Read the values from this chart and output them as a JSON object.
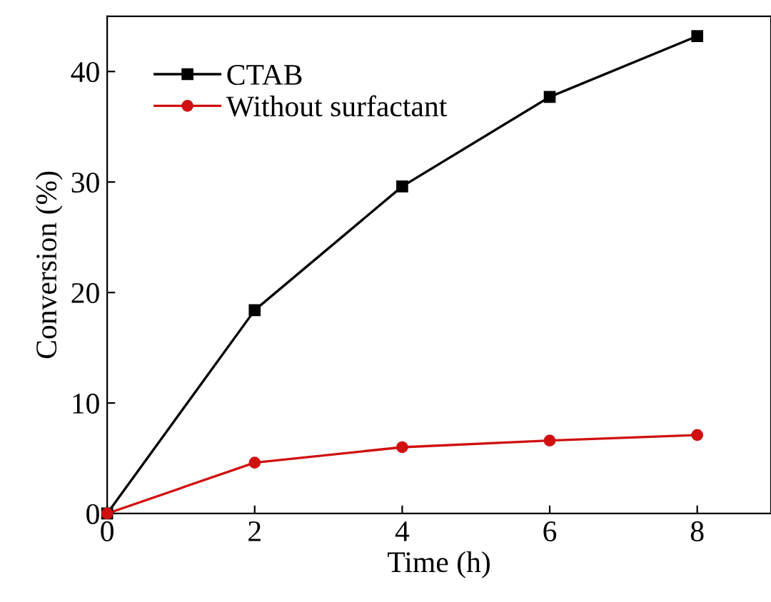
{
  "chart_data": {
    "type": "line",
    "xlabel": "Time (h)",
    "ylabel": "Conversion (%)",
    "x": [
      0,
      2,
      4,
      6,
      8
    ],
    "series": [
      {
        "name": "CTAB",
        "color": "#000000",
        "marker": "square",
        "values": [
          0,
          18.4,
          29.6,
          37.7,
          43.2
        ]
      },
      {
        "name": "Without surfactant",
        "color": "#d01010",
        "marker": "circle",
        "values": [
          0,
          4.6,
          6.0,
          6.6,
          7.1
        ]
      }
    ],
    "xlim": [
      0,
      9
    ],
    "ylim": [
      0,
      45
    ],
    "xticks": [
      0,
      2,
      4,
      6,
      8
    ],
    "yticks": [
      0,
      10,
      20,
      30,
      40
    ],
    "grid": false,
    "legend": "top left",
    "line_style": "solid"
  }
}
